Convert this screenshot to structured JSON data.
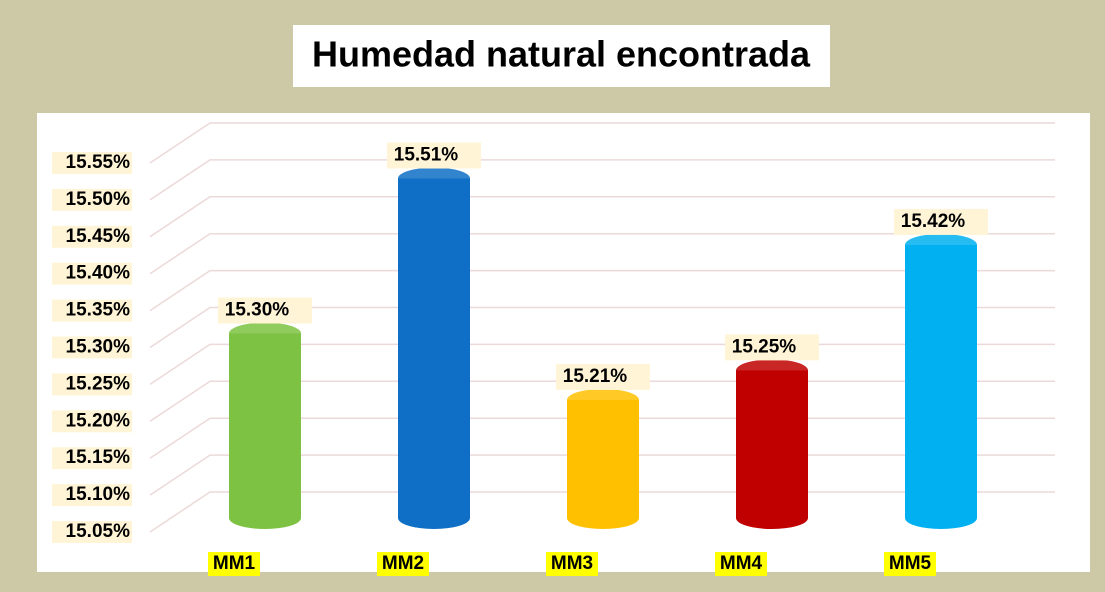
{
  "chart_data": {
    "type": "bar",
    "title": "Humedad natural encontrada",
    "categories": [
      "MM1",
      "MM2",
      "MM3",
      "MM4",
      "MM5"
    ],
    "values": [
      15.3,
      15.51,
      15.21,
      15.25,
      15.42
    ],
    "value_labels": [
      "15.30%",
      "15.51%",
      "15.21%",
      "15.25%",
      "15.42%"
    ],
    "colors": [
      "#7dc242",
      "#0f6fc6",
      "#ffc000",
      "#c00000",
      "#00b0f0"
    ],
    "ylim": [
      15.05,
      15.55
    ],
    "yticks": [
      {
        "value": 15.05,
        "label": "15.05%"
      },
      {
        "value": 15.1,
        "label": "15.10%"
      },
      {
        "value": 15.15,
        "label": "15.15%"
      },
      {
        "value": 15.2,
        "label": "15.20%"
      },
      {
        "value": 15.25,
        "label": "15.25%"
      },
      {
        "value": 15.3,
        "label": "15.30%"
      },
      {
        "value": 15.35,
        "label": "15.35%"
      },
      {
        "value": 15.4,
        "label": "15.40%"
      },
      {
        "value": 15.45,
        "label": "15.45%"
      },
      {
        "value": 15.5,
        "label": "15.50%"
      },
      {
        "value": 15.55,
        "label": "15.55%"
      }
    ],
    "grid": true
  }
}
